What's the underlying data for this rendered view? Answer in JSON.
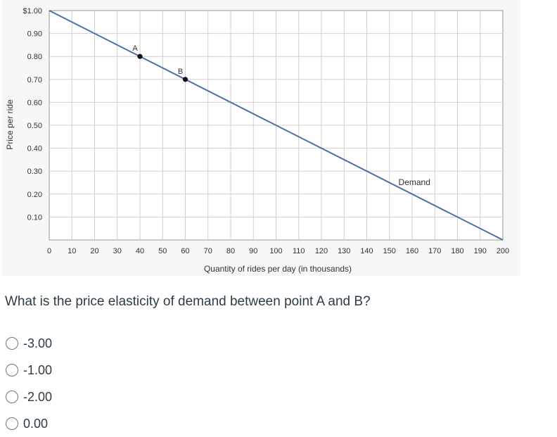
{
  "question": {
    "text": "What is the price elasticity of demand between point A and B?"
  },
  "options": [
    {
      "label": "-3.00",
      "selected": false
    },
    {
      "label": "-1.00",
      "selected": false
    },
    {
      "label": "-2.00",
      "selected": false
    },
    {
      "label": "0.00",
      "selected": false
    }
  ],
  "chart_data": {
    "type": "line",
    "title": "",
    "xlabel": "Quantity of rides per day (in thousands)",
    "ylabel": "Price per ride",
    "xlim": [
      0,
      200
    ],
    "ylim": [
      0,
      1.0
    ],
    "x_ticks": [
      "0",
      "10",
      "20",
      "30",
      "40",
      "50",
      "60",
      "70",
      "80",
      "90",
      "100",
      "110",
      "120",
      "130",
      "140",
      "150",
      "160",
      "170",
      "180",
      "190",
      "200"
    ],
    "y_ticks": [
      "$1.00",
      "0.90",
      "0.80",
      "0.70",
      "0.60",
      "0.50",
      "0.40",
      "0.30",
      "0.20",
      "0.10"
    ],
    "grid": true,
    "series": [
      {
        "name": "Demand",
        "x": [
          0,
          200
        ],
        "y": [
          1.0,
          0.0
        ],
        "color": "#4a6fa5"
      }
    ],
    "points": [
      {
        "label": "A",
        "x": 40,
        "y": 0.8
      },
      {
        "label": "B",
        "x": 60,
        "y": 0.7
      }
    ]
  },
  "colors": {
    "line": "#4a6fa5",
    "grid": "#cfcfcf",
    "panel": "#f7f7f7",
    "text": "#2d3b45"
  }
}
